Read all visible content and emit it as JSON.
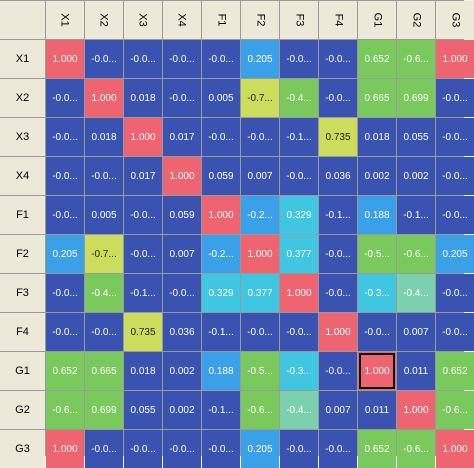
{
  "matrix": {
    "columns": [
      "X1",
      "X2",
      "X3",
      "X4",
      "F1",
      "F2",
      "F3",
      "F4",
      "G1",
      "G2",
      "G3"
    ],
    "rows": [
      {
        "label": "X1",
        "cells": [
          {
            "v": "1.000",
            "c": "red"
          },
          {
            "v": "-0.0...",
            "c": "blue"
          },
          {
            "v": "-0.0...",
            "c": "blue"
          },
          {
            "v": "-0.0...",
            "c": "blue"
          },
          {
            "v": "-0.0...",
            "c": "blue"
          },
          {
            "v": "0.205",
            "c": "sky"
          },
          {
            "v": "-0.0...",
            "c": "blue"
          },
          {
            "v": "-0.0...",
            "c": "blue"
          },
          {
            "v": "0.652",
            "c": "green"
          },
          {
            "v": "-0.6...",
            "c": "green"
          },
          {
            "v": "1.000",
            "c": "red"
          }
        ]
      },
      {
        "label": "X2",
        "cells": [
          {
            "v": "-0.0...",
            "c": "blue"
          },
          {
            "v": "1.000",
            "c": "red"
          },
          {
            "v": "0.018",
            "c": "blue"
          },
          {
            "v": "-0.0...",
            "c": "blue"
          },
          {
            "v": "0.005",
            "c": "blue"
          },
          {
            "v": "-0.7...",
            "c": "lgreen"
          },
          {
            "v": "-0.4...",
            "c": "green"
          },
          {
            "v": "-0.0...",
            "c": "blue"
          },
          {
            "v": "0.665",
            "c": "green"
          },
          {
            "v": "0.699",
            "c": "green"
          },
          {
            "v": "-0.0...",
            "c": "blue"
          }
        ]
      },
      {
        "label": "X3",
        "cells": [
          {
            "v": "-0.0...",
            "c": "blue"
          },
          {
            "v": "0.018",
            "c": "blue"
          },
          {
            "v": "1.000",
            "c": "red"
          },
          {
            "v": "0.017",
            "c": "blue"
          },
          {
            "v": "-0.0...",
            "c": "blue"
          },
          {
            "v": "-0.0...",
            "c": "blue"
          },
          {
            "v": "-0.1...",
            "c": "blue"
          },
          {
            "v": "0.735",
            "c": "lgreen"
          },
          {
            "v": "0.018",
            "c": "blue"
          },
          {
            "v": "0.055",
            "c": "blue"
          },
          {
            "v": "-0.0...",
            "c": "blue"
          }
        ]
      },
      {
        "label": "X4",
        "cells": [
          {
            "v": "-0.0...",
            "c": "blue"
          },
          {
            "v": "-0.0...",
            "c": "blue"
          },
          {
            "v": "0.017",
            "c": "blue"
          },
          {
            "v": "1.000",
            "c": "red"
          },
          {
            "v": "0.059",
            "c": "blue"
          },
          {
            "v": "0.007",
            "c": "blue"
          },
          {
            "v": "-0.0...",
            "c": "blue"
          },
          {
            "v": "0.036",
            "c": "blue"
          },
          {
            "v": "0.002",
            "c": "blue"
          },
          {
            "v": "0.002",
            "c": "blue"
          },
          {
            "v": "-0.0...",
            "c": "blue"
          }
        ]
      },
      {
        "label": "F1",
        "cells": [
          {
            "v": "-0.0...",
            "c": "blue"
          },
          {
            "v": "0.005",
            "c": "blue"
          },
          {
            "v": "-0.0...",
            "c": "blue"
          },
          {
            "v": "0.059",
            "c": "blue"
          },
          {
            "v": "1.000",
            "c": "red"
          },
          {
            "v": "-0.2...",
            "c": "sky"
          },
          {
            "v": "0.329",
            "c": "cyan"
          },
          {
            "v": "-0.1...",
            "c": "blue"
          },
          {
            "v": "0.188",
            "c": "sky"
          },
          {
            "v": "-0.1...",
            "c": "blue"
          },
          {
            "v": "-0.0...",
            "c": "blue"
          }
        ]
      },
      {
        "label": "F2",
        "cells": [
          {
            "v": "0.205",
            "c": "sky"
          },
          {
            "v": "-0.7...",
            "c": "lgreen"
          },
          {
            "v": "-0.0...",
            "c": "blue"
          },
          {
            "v": "0.007",
            "c": "blue"
          },
          {
            "v": "-0.2...",
            "c": "sky"
          },
          {
            "v": "1.000",
            "c": "red"
          },
          {
            "v": "0.377",
            "c": "cyan"
          },
          {
            "v": "-0.0...",
            "c": "blue"
          },
          {
            "v": "-0.5...",
            "c": "green"
          },
          {
            "v": "-0.6...",
            "c": "green"
          },
          {
            "v": "0.205",
            "c": "sky"
          }
        ]
      },
      {
        "label": "F3",
        "cells": [
          {
            "v": "-0.0...",
            "c": "blue"
          },
          {
            "v": "-0.4...",
            "c": "green"
          },
          {
            "v": "-0.1...",
            "c": "blue"
          },
          {
            "v": "-0.0...",
            "c": "blue"
          },
          {
            "v": "0.329",
            "c": "cyan"
          },
          {
            "v": "0.377",
            "c": "cyan"
          },
          {
            "v": "1.000",
            "c": "red"
          },
          {
            "v": "-0.0...",
            "c": "blue"
          },
          {
            "v": "-0.3...",
            "c": "cyan"
          },
          {
            "v": "-0.4...",
            "c": "teal"
          },
          {
            "v": "-0.0...",
            "c": "blue"
          }
        ]
      },
      {
        "label": "F4",
        "cells": [
          {
            "v": "-0.0...",
            "c": "blue"
          },
          {
            "v": "-0.0...",
            "c": "blue"
          },
          {
            "v": "0.735",
            "c": "lgreen"
          },
          {
            "v": "0.036",
            "c": "blue"
          },
          {
            "v": "-0.1...",
            "c": "blue"
          },
          {
            "v": "-0.0...",
            "c": "blue"
          },
          {
            "v": "-0.0...",
            "c": "blue"
          },
          {
            "v": "1.000",
            "c": "red"
          },
          {
            "v": "-0.0...",
            "c": "blue"
          },
          {
            "v": "0.007",
            "c": "blue"
          },
          {
            "v": "-0.0...",
            "c": "blue"
          }
        ]
      },
      {
        "label": "G1",
        "cells": [
          {
            "v": "0.652",
            "c": "green"
          },
          {
            "v": "0.665",
            "c": "green"
          },
          {
            "v": "0.018",
            "c": "blue"
          },
          {
            "v": "0.002",
            "c": "blue"
          },
          {
            "v": "0.188",
            "c": "sky"
          },
          {
            "v": "-0.5...",
            "c": "green"
          },
          {
            "v": "-0.3...",
            "c": "cyan"
          },
          {
            "v": "-0.0...",
            "c": "blue"
          },
          {
            "v": "1.000",
            "c": "red",
            "selected": true
          },
          {
            "v": "0.011",
            "c": "blue"
          },
          {
            "v": "0.652",
            "c": "green"
          }
        ]
      },
      {
        "label": "G2",
        "cells": [
          {
            "v": "-0.6...",
            "c": "green"
          },
          {
            "v": "0.699",
            "c": "green"
          },
          {
            "v": "0.055",
            "c": "blue"
          },
          {
            "v": "0.002",
            "c": "blue"
          },
          {
            "v": "-0.1...",
            "c": "blue"
          },
          {
            "v": "-0.6...",
            "c": "green"
          },
          {
            "v": "-0.4...",
            "c": "teal"
          },
          {
            "v": "0.007",
            "c": "blue"
          },
          {
            "v": "0.011",
            "c": "blue"
          },
          {
            "v": "1.000",
            "c": "red"
          },
          {
            "v": "-0.6...",
            "c": "green"
          }
        ]
      },
      {
        "label": "G3",
        "cells": [
          {
            "v": "1.000",
            "c": "red"
          },
          {
            "v": "-0.0...",
            "c": "blue"
          },
          {
            "v": "-0.0...",
            "c": "blue"
          },
          {
            "v": "-0.0...",
            "c": "blue"
          },
          {
            "v": "-0.0...",
            "c": "blue"
          },
          {
            "v": "0.205",
            "c": "sky"
          },
          {
            "v": "-0.0...",
            "c": "blue"
          },
          {
            "v": "-0.0...",
            "c": "blue"
          },
          {
            "v": "0.652",
            "c": "green"
          },
          {
            "v": "-0.6...",
            "c": "green"
          },
          {
            "v": "1.000",
            "c": "red"
          }
        ]
      }
    ]
  },
  "colors": {
    "blue": "#3a52b0",
    "red": "#ee6470",
    "lgreen": "#ccdd5c",
    "green": "#7ac95c",
    "cyan": "#40c6e0",
    "teal": "#7bd1ad",
    "sky": "#3aa0e8"
  }
}
